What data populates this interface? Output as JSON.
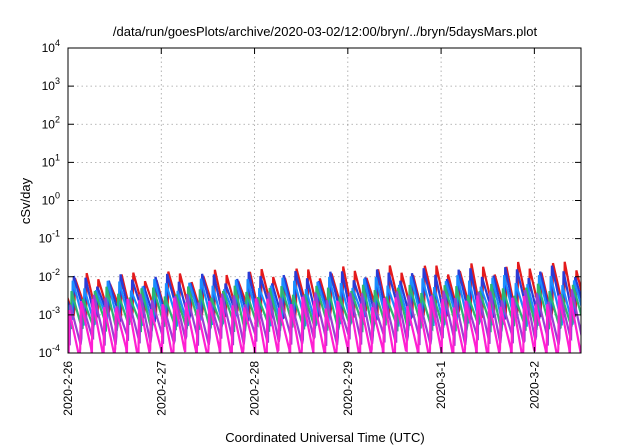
{
  "chart_data": {
    "type": "line",
    "title": "/data/run/goesPlots/archive/2020-03-02/12:00/bryn/../bryn/5daysMars.plot",
    "xlabel": "Coordinated Universal Time (UTC)",
    "ylabel": "cSv/day",
    "yscale": "log",
    "ylim": [
      0.0001,
      10000
    ],
    "xlim": [
      "2020-02-26 00:00",
      "2020-03-02 12:00"
    ],
    "x_ticks": [
      "2020-2-26",
      "2020-2-27",
      "2020-2-28",
      "2020-2-29",
      "2020-3-1",
      "2020-3-2"
    ],
    "y_ticks": [
      {
        "base": "10",
        "exp": "-4",
        "value": 0.0001
      },
      {
        "base": "10",
        "exp": "-3",
        "value": 0.001
      },
      {
        "base": "10",
        "exp": "-2",
        "value": 0.01
      },
      {
        "base": "10",
        "exp": "-1",
        "value": 0.1
      },
      {
        "base": "10",
        "exp": "0",
        "value": 1
      },
      {
        "base": "10",
        "exp": "1",
        "value": 10
      },
      {
        "base": "10",
        "exp": "2",
        "value": 100
      },
      {
        "base": "10",
        "exp": "3",
        "value": 1000
      },
      {
        "base": "10",
        "exp": "4",
        "value": 10000
      }
    ],
    "grid": true,
    "cycle_hours": 3,
    "series": [
      {
        "color": "#e41a1c",
        "low": 0.0011,
        "peak_start": 0.009,
        "peak_end": 0.02,
        "phase": 0.55
      },
      {
        "color": "#2a3bd6",
        "low": 0.0009,
        "peak_start": 0.008,
        "peak_end": 0.015,
        "phase": 0.45
      },
      {
        "color": "#1a8cff",
        "low": 0.0007,
        "peak_start": 0.006,
        "peak_end": 0.009,
        "phase": 0.35
      },
      {
        "color": "#2bb673",
        "low": 0.0005,
        "peak_start": 0.004,
        "peak_end": 0.005,
        "phase": 0.25
      },
      {
        "color": "#9b3fd1",
        "low": 0.00022,
        "peak_start": 0.0025,
        "peak_end": 0.0035,
        "phase": 0.15
      },
      {
        "color": "#ff1fd2",
        "low": 0.0001,
        "peak_start": 0.002,
        "peak_end": 0.0025,
        "phase": 0.05
      }
    ]
  }
}
